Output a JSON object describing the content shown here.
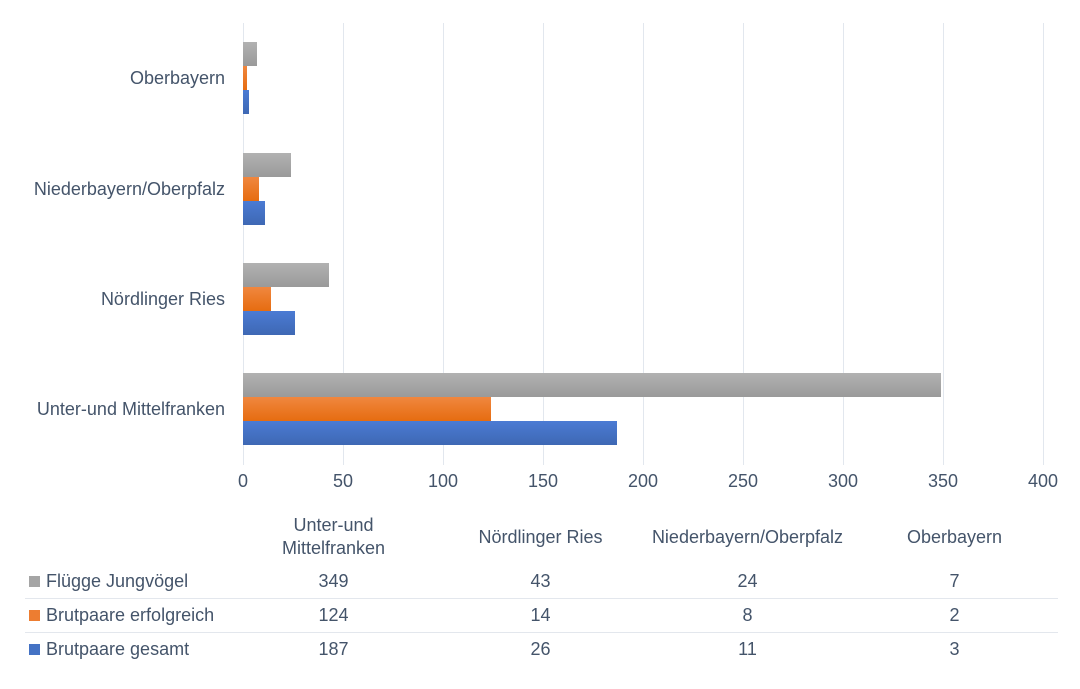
{
  "background": "#ffffff",
  "text_color": "#44546a",
  "gridline_color": "#e2e7ee",
  "chart_data": {
    "type": "bar",
    "orientation": "horizontal",
    "title": "",
    "categories_top_to_bottom": [
      "Oberbayern",
      "Niederbayern/Oberpfalz",
      "Nördlinger Ries",
      "Unter-und Mittelfranken"
    ],
    "series": [
      {
        "name": "Flügge Jungvögel",
        "color": "#a5a5a5",
        "gradient": [
          "#b2b2b2",
          "#9a9a9a"
        ],
        "values_by_category": [
          7,
          24,
          43,
          349
        ]
      },
      {
        "name": "Brutpaare erfolgreich",
        "color": "#ed7d31",
        "gradient": [
          "#f0873f",
          "#e66c10"
        ],
        "values_by_category": [
          2,
          8,
          14,
          124
        ]
      },
      {
        "name": "Brutpaare gesamt",
        "color": "#4472c4",
        "gradient": [
          "#4b7bd4",
          "#3e68b4"
        ],
        "values_by_category": [
          3,
          11,
          26,
          187
        ]
      }
    ],
    "xlim": [
      0,
      400
    ],
    "x_ticks": [
      0,
      50,
      100,
      150,
      200,
      250,
      300,
      350,
      400
    ],
    "grid": true,
    "legend_position": "table-left"
  },
  "table": {
    "column_headers": [
      "Unter-und Mittelfranken",
      "Nördlinger Ries",
      "Niederbayern/Oberpfalz",
      "Oberbayern"
    ],
    "rows": [
      {
        "label": "Flügge Jungvögel",
        "key_color": "#a5a5a5",
        "values": [
          349,
          43,
          24,
          7
        ]
      },
      {
        "label": "Brutpaare erfolgreich",
        "key_color": "#ed7d31",
        "values": [
          124,
          14,
          8,
          2
        ]
      },
      {
        "label": "Brutpaare gesamt",
        "key_color": "#4472c4",
        "values": [
          187,
          26,
          11,
          3
        ]
      }
    ]
  }
}
